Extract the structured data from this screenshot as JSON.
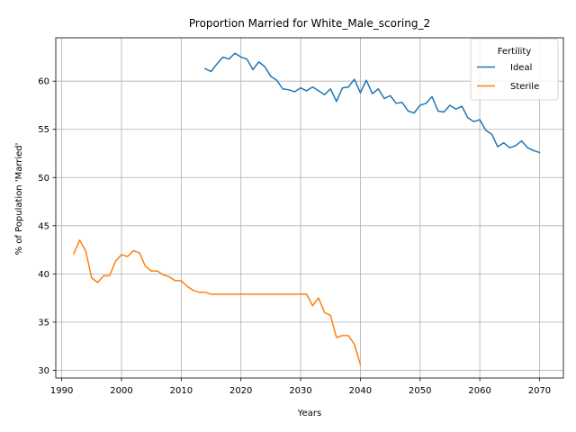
{
  "chart_data": {
    "type": "line",
    "title": "Proportion Married for White_Male_scoring_2",
    "xlabel": "Years",
    "ylabel": "% of Population 'Married'",
    "xlim": [
      1989,
      2074
    ],
    "ylim": [
      29.2,
      64.5
    ],
    "xticks": [
      1990,
      2000,
      2010,
      2020,
      2030,
      2040,
      2050,
      2060,
      2070
    ],
    "yticks": [
      30,
      35,
      40,
      45,
      50,
      55,
      60
    ],
    "grid": true,
    "legend": {
      "title": "Fertility",
      "placement": "top-right"
    },
    "series": [
      {
        "name": "Ideal",
        "color": "#1f77b4",
        "x": [
          2014,
          2015,
          2016,
          2017,
          2018,
          2019,
          2020,
          2021,
          2022,
          2023,
          2024,
          2025,
          2026,
          2027,
          2028,
          2029,
          2030,
          2031,
          2032,
          2033,
          2034,
          2035,
          2036,
          2037,
          2038,
          2039,
          2040,
          2041,
          2042,
          2043,
          2044,
          2045,
          2046,
          2047,
          2048,
          2049,
          2050,
          2051,
          2052,
          2053,
          2054,
          2055,
          2056,
          2057,
          2058,
          2059,
          2060,
          2061,
          2062,
          2063,
          2064,
          2065,
          2066,
          2067,
          2068,
          2069,
          2070
        ],
        "y": [
          61.3,
          61.0,
          61.8,
          62.5,
          62.3,
          62.9,
          62.5,
          62.3,
          61.2,
          62.0,
          61.5,
          60.5,
          60.1,
          59.2,
          59.1,
          58.9,
          59.3,
          59.0,
          59.4,
          59.0,
          58.6,
          59.2,
          57.9,
          59.3,
          59.4,
          60.2,
          58.8,
          60.1,
          58.7,
          59.2,
          58.2,
          58.5,
          57.7,
          57.8,
          56.9,
          56.7,
          57.5,
          57.7,
          58.4,
          56.9,
          56.8,
          57.5,
          57.1,
          57.4,
          56.2,
          55.8,
          56.0,
          54.9,
          54.5,
          53.2,
          53.6,
          53.1,
          53.3,
          53.8,
          53.1,
          52.8,
          52.6
        ]
      },
      {
        "name": "Sterile",
        "color": "#ff7f0e",
        "x": [
          1992,
          1993,
          1994,
          1995,
          1996,
          1997,
          1998,
          1999,
          2000,
          2001,
          2002,
          2003,
          2004,
          2005,
          2006,
          2007,
          2008,
          2009,
          2010,
          2011,
          2012,
          2013,
          2014,
          2015,
          2016,
          2017,
          2018,
          2019,
          2020,
          2021,
          2022,
          2023,
          2024,
          2025,
          2026,
          2027,
          2028,
          2029,
          2030,
          2031,
          2032,
          2033,
          2034,
          2035,
          2036,
          2037,
          2038,
          2039,
          2040
        ],
        "y": [
          42.1,
          43.5,
          42.4,
          39.6,
          39.1,
          39.8,
          39.8,
          41.3,
          42.0,
          41.8,
          42.4,
          42.2,
          40.8,
          40.3,
          40.3,
          39.9,
          39.7,
          39.3,
          39.3,
          38.7,
          38.3,
          38.1,
          38.1,
          37.9,
          37.9,
          37.9,
          37.9,
          37.9,
          37.9,
          37.9,
          37.9,
          37.9,
          37.9,
          37.9,
          37.9,
          37.9,
          37.9,
          37.9,
          37.9,
          37.9,
          36.7,
          37.5,
          36.0,
          35.7,
          33.4,
          33.6,
          33.6,
          32.7,
          30.6
        ]
      }
    ]
  }
}
